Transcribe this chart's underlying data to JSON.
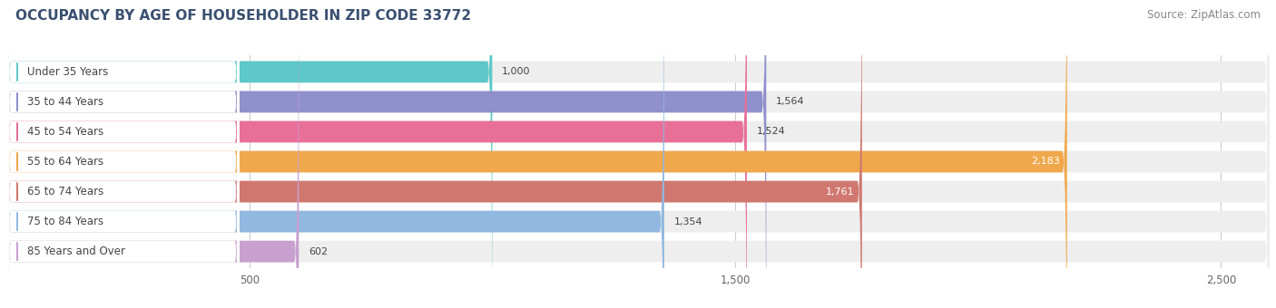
{
  "title": "OCCUPANCY BY AGE OF HOUSEHOLDER IN ZIP CODE 33772",
  "source": "Source: ZipAtlas.com",
  "categories": [
    "Under 35 Years",
    "35 to 44 Years",
    "45 to 54 Years",
    "55 to 64 Years",
    "65 to 74 Years",
    "75 to 84 Years",
    "85 Years and Over"
  ],
  "values": [
    1000,
    1564,
    1524,
    2183,
    1761,
    1354,
    602
  ],
  "bar_colors": [
    "#5ec8c8",
    "#9090cc",
    "#e87098",
    "#f0a84c",
    "#d07870",
    "#90b8e0",
    "#c8a0d0"
  ],
  "bar_bg_color": "#eeeeee",
  "label_bg_color": "#ffffff",
  "value_labels": [
    "1,000",
    "1,564",
    "1,524",
    "2,183",
    "1,761",
    "1,354",
    "602"
  ],
  "value_label_white": [
    false,
    false,
    false,
    true,
    true,
    false,
    false
  ],
  "xlim_max": 2600,
  "xticks": [
    500,
    1500,
    2500
  ],
  "xtick_labels": [
    "500",
    "1,500",
    "2,500"
  ],
  "background_color": "#ffffff",
  "title_fontsize": 11,
  "source_fontsize": 8.5,
  "title_color": "#3a5070",
  "source_color": "#888888"
}
